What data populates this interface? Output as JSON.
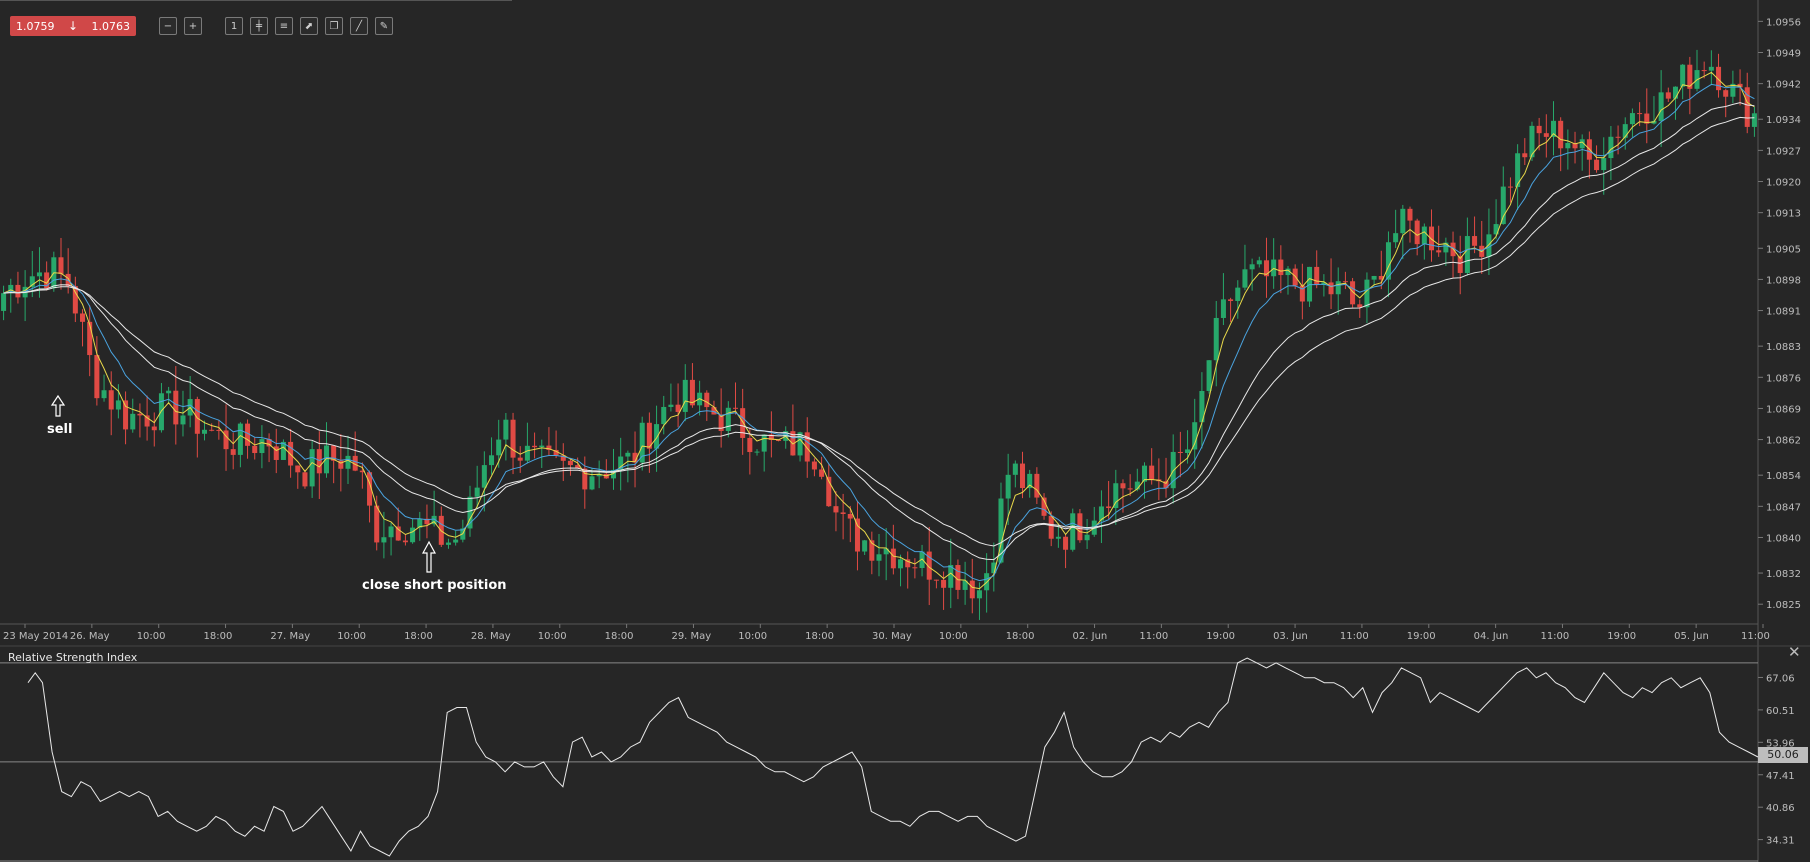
{
  "toolbar": {
    "bid": "1.0759",
    "ask": "1.0763",
    "arrow_icon": "arrow-down-icon",
    "buttons": [
      {
        "name": "zoom-out-icon",
        "glyph": "−"
      },
      {
        "name": "zoom-in-icon",
        "glyph": "+"
      },
      {
        "name": "timeframe-icon",
        "glyph": "1"
      },
      {
        "name": "candles-icon",
        "glyph": "╪"
      },
      {
        "name": "indicators-icon",
        "glyph": "≡"
      },
      {
        "name": "chart-settings-icon",
        "glyph": "⬈"
      },
      {
        "name": "copy-icon",
        "glyph": "❐"
      },
      {
        "name": "draw-line-icon",
        "glyph": "╱"
      },
      {
        "name": "pencil-icon",
        "glyph": "✎"
      }
    ]
  },
  "annotations": {
    "sell": "sell",
    "close": "close short position"
  },
  "rsi": {
    "title": "Relative Strength Index",
    "current": "50.06",
    "close_icon": "close-icon"
  },
  "colors": {
    "background": "#262626",
    "up": "#27a86b",
    "down": "#e04a44",
    "ema_fast": "#e8d84a",
    "ema_mid": "#4aa3df",
    "ema_slow": "#e8e8e8",
    "grid_text": "#bdbdbd",
    "badge": "#bdbdbd"
  },
  "chart_data": [
    {
      "type": "candlestick",
      "y_ticks": [
        "1.0956",
        "1.0949",
        "1.0942",
        "1.0934",
        "1.0927",
        "1.0920",
        "1.0913",
        "1.0905",
        "1.0898",
        "1.0891",
        "1.0883",
        "1.0876",
        "1.0869",
        "1.0862",
        "1.0854",
        "1.0847",
        "1.0840",
        "1.0832",
        "1.0825"
      ],
      "ylim": [
        1.0821,
        1.0959
      ],
      "x_labels": [
        "23 May 2014",
        "26. May",
        "10:00",
        "18:00",
        "27. May",
        "10:00",
        "18:00",
        "28. May",
        "10:00",
        "18:00",
        "29. May",
        "10:00",
        "18:00",
        "30. May",
        "10:00",
        "18:00",
        "02. Jun",
        "11:00",
        "19:00",
        "03. Jun",
        "11:00",
        "19:00",
        "04. Jun",
        "11:00",
        "19:00",
        "05. Jun",
        "11:00"
      ],
      "close_path": [
        [
          0,
          1.0895
        ],
        [
          10,
          1.0899
        ],
        [
          20,
          1.09
        ],
        [
          28,
          1.0897
        ],
        [
          38,
          1.0876
        ],
        [
          44,
          1.0872
        ],
        [
          52,
          1.0867
        ],
        [
          62,
          1.0868
        ],
        [
          72,
          1.0869
        ],
        [
          82,
          1.0866
        ],
        [
          92,
          1.0862
        ],
        [
          102,
          1.0861
        ],
        [
          112,
          1.0862
        ],
        [
          120,
          1.0858
        ],
        [
          126,
          1.0855
        ],
        [
          134,
          1.0857
        ],
        [
          144,
          1.0858
        ],
        [
          150,
          1.0855
        ],
        [
          156,
          1.0842
        ],
        [
          164,
          1.0843
        ],
        [
          174,
          1.0843
        ],
        [
          184,
          1.084
        ],
        [
          190,
          1.0839
        ],
        [
          196,
          1.0845
        ],
        [
          202,
          1.0856
        ],
        [
          210,
          1.0866
        ],
        [
          216,
          1.086
        ],
        [
          224,
          1.0857
        ],
        [
          234,
          1.0855
        ],
        [
          244,
          1.0855
        ],
        [
          256,
          1.0856
        ],
        [
          264,
          1.0857
        ],
        [
          274,
          1.0866
        ],
        [
          284,
          1.0872
        ],
        [
          294,
          1.0869
        ],
        [
          304,
          1.0867
        ],
        [
          316,
          1.0863
        ],
        [
          324,
          1.086
        ],
        [
          334,
          1.0861
        ],
        [
          344,
          1.0859
        ],
        [
          352,
          1.0843
        ],
        [
          360,
          1.084
        ],
        [
          370,
          1.0838
        ],
        [
          380,
          1.0836
        ],
        [
          388,
          1.0834
        ],
        [
          398,
          1.0833
        ],
        [
          406,
          1.0831
        ],
        [
          412,
          1.0828
        ],
        [
          418,
          1.084
        ],
        [
          424,
          1.0856
        ],
        [
          432,
          1.0851
        ],
        [
          440,
          1.0842
        ],
        [
          448,
          1.0841
        ],
        [
          456,
          1.0844
        ],
        [
          466,
          1.0851
        ],
        [
          476,
          1.0852
        ],
        [
          486,
          1.0853
        ],
        [
          494,
          1.0856
        ],
        [
          502,
          1.0862
        ],
        [
          508,
          1.088
        ],
        [
          516,
          1.0893
        ],
        [
          524,
          1.0899
        ],
        [
          536,
          1.0898
        ],
        [
          546,
          1.0897
        ],
        [
          556,
          1.0896
        ],
        [
          566,
          1.0895
        ],
        [
          570,
          1.0891
        ],
        [
          578,
          1.0897
        ],
        [
          584,
          1.0908
        ],
        [
          592,
          1.091
        ],
        [
          600,
          1.0908
        ],
        [
          608,
          1.0906
        ],
        [
          616,
          1.0903
        ],
        [
          626,
          1.0909
        ],
        [
          634,
          1.092
        ],
        [
          642,
          1.0928
        ],
        [
          650,
          1.0931
        ],
        [
          660,
          1.093
        ],
        [
          668,
          1.0924
        ],
        [
          674,
          1.0928
        ],
        [
          682,
          1.0933
        ],
        [
          690,
          1.0937
        ],
        [
          700,
          1.0938
        ],
        [
          710,
          1.0944
        ],
        [
          718,
          1.0948
        ],
        [
          724,
          1.0944
        ],
        [
          730,
          1.0939
        ],
        [
          738,
          1.0935
        ]
      ],
      "series": [
        {
          "name": "",
          "kind": "ema_fast"
        },
        {
          "name": "",
          "kind": "ema_mid"
        },
        {
          "name": "",
          "kind": "ema_slow_1"
        },
        {
          "name": "",
          "kind": "ema_slow_2"
        }
      ]
    },
    {
      "type": "line",
      "title": "Relative Strength Index",
      "y_ticks": [
        "67.06",
        "60.51",
        "53.96",
        "47.41",
        "40.86",
        "34.31"
      ],
      "ylim": [
        31.0,
        72.0
      ],
      "levels": [
        30,
        50,
        70
      ],
      "values": [
        [
          0,
          66
        ],
        [
          3,
          68
        ],
        [
          6,
          66
        ],
        [
          10,
          52
        ],
        [
          14,
          44
        ],
        [
          18,
          43
        ],
        [
          22,
          46
        ],
        [
          26,
          45
        ],
        [
          30,
          42
        ],
        [
          34,
          43
        ],
        [
          38,
          44
        ],
        [
          42,
          43
        ],
        [
          46,
          44
        ],
        [
          50,
          43
        ],
        [
          54,
          39
        ],
        [
          58,
          40
        ],
        [
          62,
          38
        ],
        [
          66,
          37
        ],
        [
          70,
          36
        ],
        [
          74,
          37
        ],
        [
          78,
          39
        ],
        [
          82,
          38
        ],
        [
          86,
          36
        ],
        [
          90,
          35
        ],
        [
          94,
          37
        ],
        [
          98,
          36
        ],
        [
          102,
          41
        ],
        [
          106,
          40
        ],
        [
          110,
          36
        ],
        [
          114,
          37
        ],
        [
          118,
          39
        ],
        [
          122,
          41
        ],
        [
          126,
          38
        ],
        [
          130,
          35
        ],
        [
          134,
          32
        ],
        [
          138,
          36
        ],
        [
          142,
          33
        ],
        [
          146,
          32
        ],
        [
          150,
          31
        ],
        [
          154,
          34
        ],
        [
          158,
          36
        ],
        [
          162,
          37
        ],
        [
          166,
          39
        ],
        [
          170,
          44
        ],
        [
          174,
          60
        ],
        [
          178,
          61
        ],
        [
          182,
          61
        ],
        [
          186,
          54
        ],
        [
          190,
          51
        ],
        [
          194,
          50
        ],
        [
          198,
          48
        ],
        [
          202,
          50
        ],
        [
          206,
          49
        ],
        [
          210,
          49
        ],
        [
          214,
          50
        ],
        [
          218,
          47
        ],
        [
          222,
          45
        ],
        [
          226,
          54
        ],
        [
          230,
          55
        ],
        [
          234,
          51
        ],
        [
          238,
          52
        ],
        [
          242,
          50
        ],
        [
          246,
          51
        ],
        [
          250,
          53
        ],
        [
          254,
          54
        ],
        [
          258,
          58
        ],
        [
          262,
          60
        ],
        [
          266,
          62
        ],
        [
          270,
          63
        ],
        [
          274,
          59
        ],
        [
          278,
          58
        ],
        [
          282,
          57
        ],
        [
          286,
          56
        ],
        [
          290,
          54
        ],
        [
          294,
          53
        ],
        [
          298,
          52
        ],
        [
          302,
          51
        ],
        [
          306,
          49
        ],
        [
          310,
          48
        ],
        [
          314,
          48
        ],
        [
          318,
          47
        ],
        [
          322,
          46
        ],
        [
          326,
          47
        ],
        [
          330,
          49
        ],
        [
          334,
          50
        ],
        [
          338,
          51
        ],
        [
          342,
          52
        ],
        [
          346,
          49
        ],
        [
          350,
          40
        ],
        [
          354,
          39
        ],
        [
          358,
          38
        ],
        [
          362,
          38
        ],
        [
          366,
          37
        ],
        [
          370,
          39
        ],
        [
          374,
          40
        ],
        [
          378,
          40
        ],
        [
          382,
          39
        ],
        [
          386,
          38
        ],
        [
          390,
          39
        ],
        [
          394,
          39
        ],
        [
          398,
          37
        ],
        [
          402,
          36
        ],
        [
          406,
          35
        ],
        [
          410,
          34
        ],
        [
          414,
          35
        ],
        [
          418,
          44
        ],
        [
          422,
          53
        ],
        [
          426,
          56
        ],
        [
          430,
          60
        ],
        [
          434,
          53
        ],
        [
          438,
          50
        ],
        [
          442,
          48
        ],
        [
          446,
          47
        ],
        [
          450,
          47
        ],
        [
          454,
          48
        ],
        [
          458,
          50
        ],
        [
          462,
          54
        ],
        [
          466,
          55
        ],
        [
          470,
          54
        ],
        [
          474,
          56
        ],
        [
          478,
          55
        ],
        [
          482,
          57
        ],
        [
          486,
          58
        ],
        [
          490,
          57
        ],
        [
          494,
          60
        ],
        [
          498,
          62
        ],
        [
          502,
          70
        ],
        [
          506,
          71
        ],
        [
          510,
          70
        ],
        [
          514,
          69
        ],
        [
          518,
          70
        ],
        [
          522,
          69
        ],
        [
          526,
          68
        ],
        [
          530,
          67
        ],
        [
          534,
          67
        ],
        [
          538,
          66
        ],
        [
          542,
          66
        ],
        [
          546,
          65
        ],
        [
          550,
          63
        ],
        [
          554,
          65
        ],
        [
          558,
          60
        ],
        [
          562,
          64
        ],
        [
          566,
          66
        ],
        [
          570,
          69
        ],
        [
          574,
          68
        ],
        [
          578,
          67
        ],
        [
          582,
          62
        ],
        [
          586,
          64
        ],
        [
          590,
          63
        ],
        [
          594,
          62
        ],
        [
          598,
          61
        ],
        [
          602,
          60
        ],
        [
          606,
          62
        ],
        [
          610,
          64
        ],
        [
          614,
          66
        ],
        [
          618,
          68
        ],
        [
          622,
          69
        ],
        [
          626,
          67
        ],
        [
          630,
          68
        ],
        [
          634,
          66
        ],
        [
          638,
          65
        ],
        [
          642,
          63
        ],
        [
          646,
          62
        ],
        [
          650,
          65
        ],
        [
          654,
          68
        ],
        [
          658,
          66
        ],
        [
          662,
          64
        ],
        [
          666,
          63
        ],
        [
          670,
          65
        ],
        [
          674,
          64
        ],
        [
          678,
          66
        ],
        [
          682,
          67
        ],
        [
          686,
          65
        ],
        [
          690,
          66
        ],
        [
          694,
          67
        ],
        [
          698,
          64
        ],
        [
          702,
          56
        ],
        [
          706,
          54
        ],
        [
          710,
          53
        ],
        [
          714,
          52
        ],
        [
          718,
          51
        ]
      ]
    }
  ]
}
